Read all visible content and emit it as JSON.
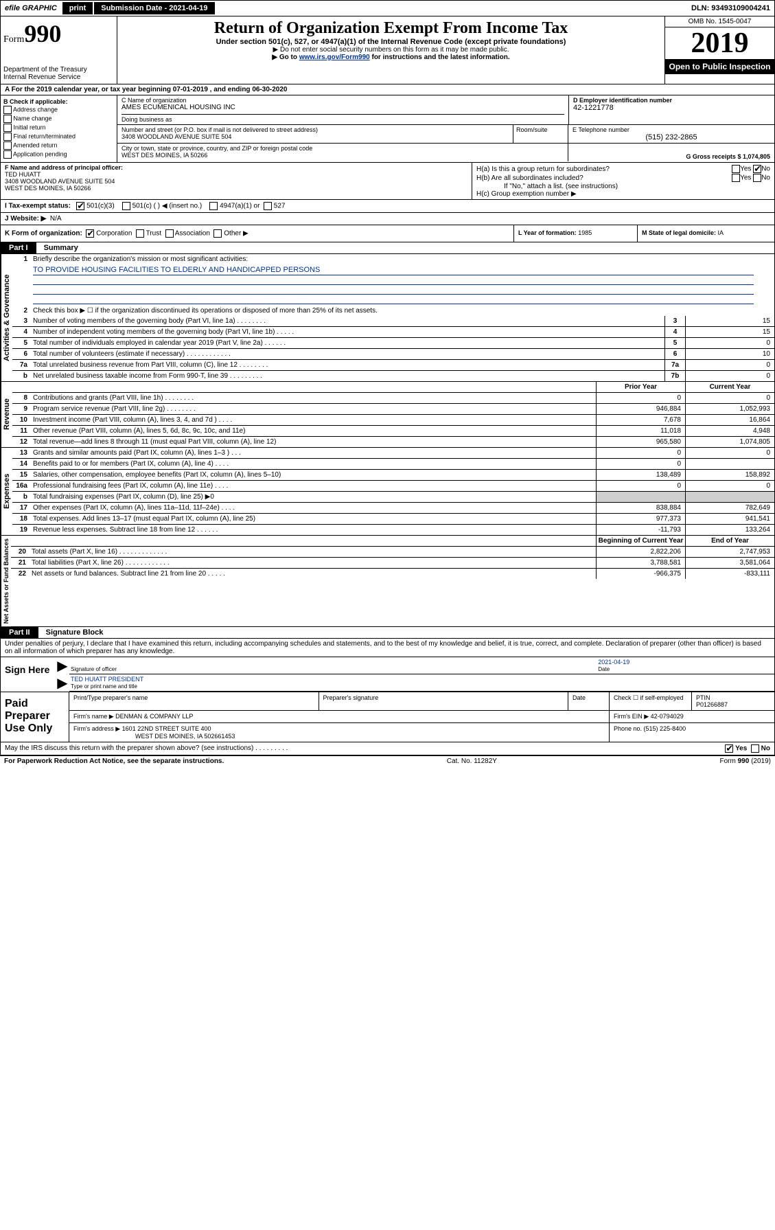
{
  "topbar": {
    "efile": "efile GRAPHIC",
    "print": "print",
    "submission": "Submission Date - 2021-04-19",
    "dln": "DLN: 93493109004241"
  },
  "header": {
    "form_label": "Form",
    "form_num": "990",
    "dept": "Department of the Treasury\nInternal Revenue Service",
    "title": "Return of Organization Exempt From Income Tax",
    "subtitle": "Under section 501(c), 527, or 4947(a)(1) of the Internal Revenue Code (except private foundations)",
    "hint1": "▶ Do not enter social security numbers on this form as it may be made public.",
    "hint2_pre": "▶ Go to ",
    "hint2_link": "www.irs.gov/Form990",
    "hint2_post": " for instructions and the latest information.",
    "omb": "OMB No. 1545-0047",
    "year": "2019",
    "openpub": "Open to Public Inspection"
  },
  "row_a": "A For the 2019 calendar year, or tax year beginning 07-01-2019    , and ending 06-30-2020",
  "box_b": {
    "label": "B Check if applicable:",
    "opts": [
      "Address change",
      "Name change",
      "Initial return",
      "Final return/terminated",
      "Amended return",
      "Application pending"
    ]
  },
  "box_c": {
    "label": "C Name of organization",
    "name": "AMES ECUMENICAL HOUSING INC",
    "dba_label": "Doing business as",
    "addr_label": "Number and street (or P.O. box if mail is not delivered to street address)",
    "addr": "3408 WOODLAND AVENUE SUITE 504",
    "room_label": "Room/suite",
    "city_label": "City or town, state or province, country, and ZIP or foreign postal code",
    "city": "WEST DES MOINES, IA  50266"
  },
  "box_d": {
    "label": "D Employer identification number",
    "val": "42-1221778"
  },
  "box_e": {
    "label": "E Telephone number",
    "val": "(515) 232-2865"
  },
  "box_g": {
    "label": "G Gross receipts $ ",
    "val": "1,074,805"
  },
  "box_f": {
    "label": "F Name and address of principal officer:",
    "name": "TED HUIATT",
    "addr1": "3408 WOODLAND AVENUE SUITE 504",
    "addr2": "WEST DES MOINES, IA  50266"
  },
  "box_h": {
    "ha": "H(a)  Is this a group return for subordinates?",
    "hb": "H(b)  Are all subordinates included?",
    "hb_note": "If \"No,\" attach a list. (see instructions)",
    "hc": "H(c)  Group exemption number ▶",
    "yes": "Yes",
    "no": "No"
  },
  "row_i": {
    "label": "I  Tax-exempt status:",
    "o1": "501(c)(3)",
    "o2": "501(c) (  ) ◀ (insert no.)",
    "o3": "4947(a)(1) or",
    "o4": "527"
  },
  "row_j": {
    "label": "J  Website: ▶",
    "val": "N/A"
  },
  "row_k": {
    "label": "K Form of organization:",
    "o1": "Corporation",
    "o2": "Trust",
    "o3": "Association",
    "o4": "Other ▶"
  },
  "row_l": {
    "label": "L Year of formation: ",
    "val": "1985"
  },
  "row_m": {
    "label": "M State of legal domicile: ",
    "val": "IA"
  },
  "part1": {
    "hdr": "Part I",
    "title": "Summary"
  },
  "gov": {
    "side": "Activities & Governance",
    "q1": "Briefly describe the organization's mission or most significant activities:",
    "mission": "TO PROVIDE HOUSING FACILITIES TO ELDERLY AND HANDICAPPED PERSONS",
    "q2": "Check this box ▶ ☐  if the organization discontinued its operations or disposed of more than 25% of its net assets.",
    "lines": [
      {
        "n": "3",
        "t": "Number of voting members of the governing body (Part VI, line 1a)   .    .    .    .    .    .    .    .",
        "c": "3",
        "v": "15"
      },
      {
        "n": "4",
        "t": "Number of independent voting members of the governing body (Part VI, line 1b)   .    .    .    .    .",
        "c": "4",
        "v": "15"
      },
      {
        "n": "5",
        "t": "Total number of individuals employed in calendar year 2019 (Part V, line 2a)  .    .    .    .    .    .",
        "c": "5",
        "v": "0"
      },
      {
        "n": "6",
        "t": "Total number of volunteers (estimate if necessary)   .    .    .    .    .    .    .    .    .    .    .    .",
        "c": "6",
        "v": "10"
      },
      {
        "n": "7a",
        "t": "Total unrelated business revenue from Part VIII, column (C), line 12  .    .    .    .    .    .    .    .",
        "c": "7a",
        "v": "0"
      },
      {
        "n": "b",
        "t": "Net unrelated business taxable income from Form 990-T, line 39   .    .    .    .    .    .    .    .    .",
        "c": "7b",
        "v": "0"
      }
    ]
  },
  "rev": {
    "side": "Revenue",
    "hdr_prior": "Prior Year",
    "hdr_curr": "Current Year",
    "lines": [
      {
        "n": "8",
        "t": "Contributions and grants (Part VIII, line 1h)   .    .    .    .    .    .    .    .",
        "p": "0",
        "c": "0"
      },
      {
        "n": "9",
        "t": "Program service revenue (Part VIII, line 2g)   .    .    .    .    .    .    .    .",
        "p": "946,884",
        "c": "1,052,993"
      },
      {
        "n": "10",
        "t": "Investment income (Part VIII, column (A), lines 3, 4, and 7d )   .    .    .    .",
        "p": "7,678",
        "c": "16,864"
      },
      {
        "n": "11",
        "t": "Other revenue (Part VIII, column (A), lines 5, 6d, 8c, 9c, 10c, and 11e)",
        "p": "11,018",
        "c": "4,948"
      },
      {
        "n": "12",
        "t": "Total revenue—add lines 8 through 11 (must equal Part VIII, column (A), line 12)",
        "p": "965,580",
        "c": "1,074,805"
      }
    ]
  },
  "exp": {
    "side": "Expenses",
    "lines": [
      {
        "n": "13",
        "t": "Grants and similar amounts paid (Part IX, column (A), lines 1–3 )   .    .    .",
        "p": "0",
        "c": "0"
      },
      {
        "n": "14",
        "t": "Benefits paid to or for members (Part IX, column (A), line 4)   .    .    .    .",
        "p": "0",
        "c": ""
      },
      {
        "n": "15",
        "t": "Salaries, other compensation, employee benefits (Part IX, column (A), lines 5–10)",
        "p": "138,489",
        "c": "158,892"
      },
      {
        "n": "16a",
        "t": "Professional fundraising fees (Part IX, column (A), line 11e)   .    .    .    .",
        "p": "0",
        "c": "0"
      },
      {
        "n": "b",
        "t": "Total fundraising expenses (Part IX, column (D), line 25) ▶0",
        "p": "",
        "c": "",
        "shade": true
      },
      {
        "n": "17",
        "t": "Other expenses (Part IX, column (A), lines 11a–11d, 11f–24e)   .    .    .    .",
        "p": "838,884",
        "c": "782,649"
      },
      {
        "n": "18",
        "t": "Total expenses. Add lines 13–17 (must equal Part IX, column (A), line 25)",
        "p": "977,373",
        "c": "941,541"
      },
      {
        "n": "19",
        "t": "Revenue less expenses. Subtract line 18 from line 12   .    .    .    .    .    .",
        "p": "-11,793",
        "c": "133,264"
      }
    ]
  },
  "net": {
    "side": "Net Assets or Fund Balances",
    "hdr_beg": "Beginning of Current Year",
    "hdr_end": "End of Year",
    "lines": [
      {
        "n": "20",
        "t": "Total assets (Part X, line 16)  .    .    .    .    .    .    .    .    .    .    .    .    .",
        "p": "2,822,206",
        "c": "2,747,953"
      },
      {
        "n": "21",
        "t": "Total liabilities (Part X, line 26)  .    .    .    .    .    .    .    .    .    .    .    .",
        "p": "3,788,581",
        "c": "3,581,064"
      },
      {
        "n": "22",
        "t": "Net assets or fund balances. Subtract line 21 from line 20  .    .    .    .    .",
        "p": "-966,375",
        "c": "-833,111"
      }
    ]
  },
  "part2": {
    "hdr": "Part II",
    "title": "Signature Block"
  },
  "perjury": "Under penalties of perjury, I declare that I have examined this return, including accompanying schedules and statements, and to the best of my knowledge and belief, it is true, correct, and complete. Declaration of preparer (other than officer) is based on all information of which preparer has any knowledge.",
  "sign": {
    "here": "Sign Here",
    "sig_officer": "Signature of officer",
    "date": "2021-04-19",
    "date_label": "Date",
    "name": "TED HUIATT  PRESIDENT",
    "name_label": "Type or print name and title"
  },
  "paid": {
    "label": "Paid Preparer Use Only",
    "h1": "Print/Type preparer's name",
    "h2": "Preparer's signature",
    "h3": "Date",
    "h4_check": "Check ☐ if self-employed",
    "h5": "PTIN",
    "ptin": "P01266887",
    "firm_label": "Firm's name    ▶",
    "firm": "DENMAN & COMPANY LLP",
    "ein_label": "Firm's EIN ▶",
    "ein": "42-0794029",
    "addr_label": "Firm's address ▶",
    "addr1": "1601 22ND STREET SUITE 400",
    "addr2": "WEST DES MOINES, IA  502661453",
    "phone_label": "Phone no. ",
    "phone": "(515) 225-8400"
  },
  "discuss": "May the IRS discuss this return with the preparer shown above? (see instructions)   .    .    .    .    .    .    .    .    .",
  "footer": {
    "pra": "For Paperwork Reduction Act Notice, see the separate instructions.",
    "cat": "Cat. No. 11282Y",
    "form": "Form 990 (2019)"
  },
  "colors": {
    "link": "#003399",
    "shade": "#cfcfcf"
  }
}
